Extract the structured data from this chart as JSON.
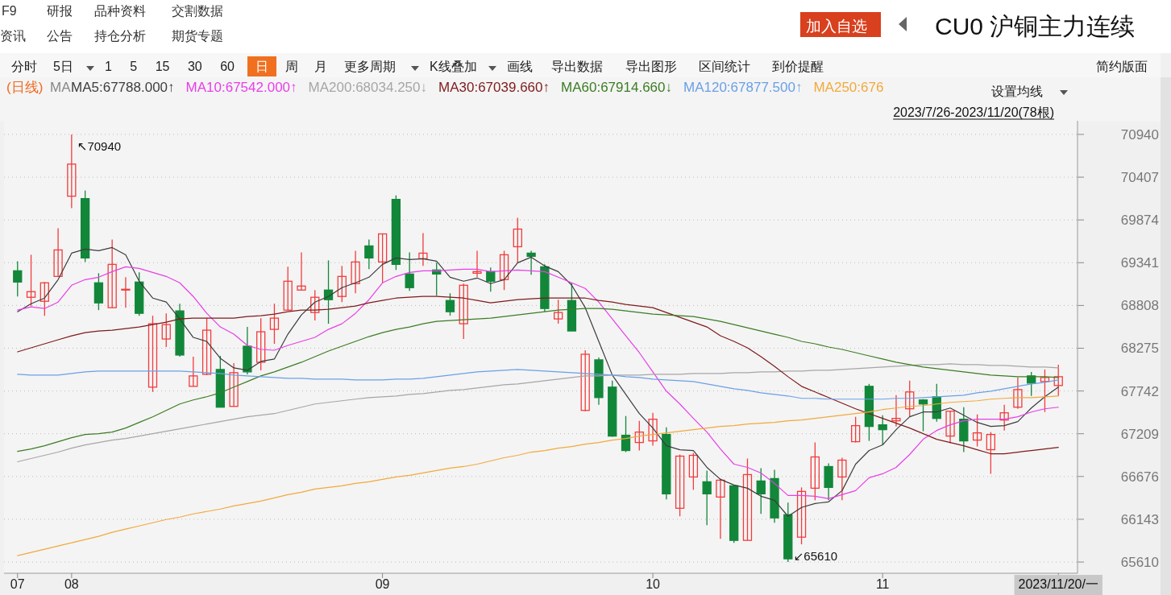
{
  "chart_data": {
    "type": "candlestick",
    "title": "CU0 沪铜主力连续",
    "subtitle": "2023/7/26-2023/11/20(78根)",
    "annotations": [
      "F9",
      "研报",
      "品种资料",
      "交割数据",
      "资讯",
      "公告",
      "持仓分析",
      "期货专题",
      "加入自选",
      "分时",
      "5日",
      "1 5 15 30 60",
      "日",
      "周",
      "月",
      "更多周期",
      "K线叠加",
      "画线",
      "导出数据",
      "导出图形",
      "区间统计",
      "到价提醒",
      "简约版面",
      "(日线)",
      "MA",
      "设置均线",
      {
        "text": "↖70940",
        "x": "08",
        "y": 70940
      },
      "↙65610"
    ],
    "categories": [
      "07",
      null,
      null,
      null,
      "08",
      null,
      null,
      null,
      null,
      null,
      null,
      null,
      null,
      null,
      null,
      null,
      null,
      null,
      null,
      null,
      null,
      null,
      null,
      null,
      null,
      null,
      null,
      "09",
      null,
      null,
      null,
      null,
      null,
      null,
      null,
      null,
      null,
      null,
      null,
      null,
      null,
      null,
      null,
      null,
      null,
      null,
      null,
      "10",
      null,
      null,
      null,
      null,
      null,
      null,
      null,
      null,
      null,
      null,
      null,
      null,
      null,
      null,
      null,
      null,
      "11",
      null,
      null,
      null,
      null,
      null,
      null,
      null,
      null,
      null,
      null,
      null,
      null,
      "2023/11/20/一"
    ],
    "ohlc": [
      [
        69240,
        69360,
        68920,
        69100
      ],
      [
        68910,
        69440,
        68800,
        68980
      ],
      [
        68860,
        69100,
        68680,
        69090
      ],
      [
        69170,
        69770,
        69170,
        69500
      ],
      [
        70170,
        70940,
        70020,
        70570
      ],
      [
        70140,
        70240,
        69350,
        69400
      ],
      [
        69090,
        69210,
        68750,
        68840
      ],
      [
        68780,
        69630,
        68780,
        69320
      ],
      [
        69010,
        69160,
        68780,
        69010
      ],
      [
        69100,
        69220,
        68680,
        68710
      ],
      [
        67790,
        68680,
        67730,
        68580
      ],
      [
        68390,
        68710,
        68290,
        68570
      ],
      [
        68740,
        68830,
        68170,
        68190
      ],
      [
        67800,
        68170,
        67800,
        67930
      ],
      [
        67950,
        68650,
        67940,
        68500
      ],
      [
        68010,
        68180,
        67540,
        67540
      ],
      [
        67550,
        68090,
        67550,
        67970
      ],
      [
        68300,
        68540,
        67950,
        67980
      ],
      [
        68100,
        68650,
        68000,
        68480
      ],
      [
        68510,
        68830,
        68330,
        68650
      ],
      [
        68750,
        69290,
        68750,
        69110
      ],
      [
        69000,
        69470,
        69000,
        69050
      ],
      [
        68720,
        69000,
        68620,
        68910
      ],
      [
        69000,
        69370,
        68580,
        68880
      ],
      [
        68920,
        69300,
        68850,
        69170
      ],
      [
        69080,
        69490,
        68960,
        69350
      ],
      [
        69550,
        69630,
        69260,
        69400
      ],
      [
        69350,
        69700,
        69090,
        69700
      ],
      [
        70130,
        70180,
        69250,
        69320
      ],
      [
        69200,
        69470,
        68990,
        69030
      ],
      [
        69390,
        69710,
        69300,
        69460
      ],
      [
        69250,
        69340,
        68930,
        69200
      ],
      [
        68870,
        68960,
        68680,
        68730
      ],
      [
        68580,
        69080,
        68390,
        69060
      ],
      [
        69210,
        69490,
        69160,
        69230
      ],
      [
        69230,
        69280,
        68980,
        69110
      ],
      [
        69130,
        69490,
        69000,
        69440
      ],
      [
        69540,
        69900,
        69340,
        69760
      ],
      [
        69460,
        69490,
        69190,
        69420
      ],
      [
        69290,
        69320,
        68730,
        68770
      ],
      [
        68640,
        68880,
        68580,
        68720
      ],
      [
        68870,
        69090,
        68490,
        68490
      ],
      [
        67500,
        68250,
        67490,
        68200
      ],
      [
        68130,
        68160,
        67570,
        67660
      ],
      [
        67790,
        67870,
        67170,
        67180
      ],
      [
        67190,
        67430,
        66980,
        67000
      ],
      [
        67100,
        67370,
        67000,
        67230
      ],
      [
        67120,
        67470,
        67060,
        67390
      ],
      [
        67200,
        67290,
        66390,
        66460
      ],
      [
        66280,
        66950,
        66180,
        66930
      ],
      [
        66670,
        66970,
        66510,
        66940
      ],
      [
        66610,
        66750,
        66070,
        66460
      ],
      [
        66420,
        66650,
        65900,
        66630
      ],
      [
        66560,
        66560,
        65850,
        65880
      ],
      [
        65880,
        66900,
        65880,
        66700
      ],
      [
        66620,
        66780,
        66210,
        66460
      ],
      [
        66650,
        66760,
        66100,
        66160
      ],
      [
        66200,
        66350,
        65610,
        65650
      ],
      [
        65920,
        66540,
        65830,
        66490
      ],
      [
        66530,
        67100,
        66380,
        66920
      ],
      [
        66800,
        66840,
        66380,
        66540
      ],
      [
        66670,
        66910,
        66380,
        66880
      ],
      [
        67110,
        67420,
        67100,
        67310
      ],
      [
        67800,
        67830,
        67120,
        67300
      ],
      [
        67320,
        67440,
        67070,
        67260
      ],
      [
        67370,
        67690,
        67300,
        67400
      ],
      [
        67520,
        67870,
        67420,
        67730
      ],
      [
        67630,
        67640,
        67240,
        67580
      ],
      [
        67670,
        67830,
        67360,
        67400
      ],
      [
        67180,
        67490,
        67090,
        67490
      ],
      [
        67390,
        67540,
        66980,
        67120
      ],
      [
        67130,
        67450,
        67050,
        67220
      ],
      [
        67010,
        67230,
        66710,
        67200
      ],
      [
        67380,
        67570,
        67250,
        67470
      ],
      [
        67540,
        67910,
        67520,
        67760
      ],
      [
        67930,
        67980,
        67680,
        67840
      ],
      [
        67860,
        68010,
        67480,
        67910
      ],
      [
        67810,
        68070,
        67680,
        67920
      ]
    ],
    "colors": [
      "#12873a",
      "#f23c3c",
      "#f23c3c",
      "#f23c3c",
      "#f23c3c",
      "#12873a",
      "#12873a",
      "#f23c3c",
      "#f23c3c",
      "#12873a",
      "#f23c3c",
      "#f23c3c",
      "#12873a",
      "#f23c3c",
      "#f23c3c",
      "#12873a",
      "#f23c3c",
      "#12873a",
      "#f23c3c",
      "#f23c3c",
      "#f23c3c",
      "#f23c3c",
      "#f23c3c",
      "#12873a",
      "#f23c3c",
      "#f23c3c",
      "#12873a",
      "#f23c3c",
      "#12873a",
      "#12873a",
      "#f23c3c",
      "#12873a",
      "#12873a",
      "#f23c3c",
      "#f23c3c",
      "#12873a",
      "#f23c3c",
      "#f23c3c",
      "#12873a",
      "#12873a",
      "#f23c3c",
      "#12873a",
      "#f23c3c",
      "#12873a",
      "#12873a",
      "#12873a",
      "#f23c3c",
      "#f23c3c",
      "#12873a",
      "#f23c3c",
      "#f23c3c",
      "#12873a",
      "#f23c3c",
      "#12873a",
      "#f23c3c",
      "#12873a",
      "#12873a",
      "#12873a",
      "#f23c3c",
      "#f23c3c",
      "#12873a",
      "#f23c3c",
      "#f23c3c",
      "#12873a",
      "#12873a",
      "#f23c3c",
      "#f23c3c",
      "#12873a",
      "#12873a",
      "#f23c3c",
      "#12873a",
      "#f23c3c",
      "#f23c3c",
      "#f23c3c",
      "#f23c3c",
      "#12873a",
      "#f23c3c",
      "#f23c3c"
    ],
    "series": [
      {
        "name": "MA5:67788.000↑",
        "type": "line",
        "color": "#3c3c3c",
        "values": [
          68730,
          68830,
          68900,
          69130,
          69460,
          69510,
          69490,
          69530,
          69440,
          69110,
          68900,
          68850,
          68640,
          68410,
          68360,
          68150,
          68030,
          68000,
          68110,
          68140,
          68450,
          68690,
          68850,
          68920,
          69030,
          69090,
          69160,
          69320,
          69400,
          69380,
          69390,
          69360,
          69160,
          69110,
          69150,
          69080,
          69130,
          69340,
          69410,
          69300,
          69230,
          69060,
          68780,
          68360,
          67940,
          67700,
          67460,
          67280,
          67060,
          67010,
          67000,
          66790,
          66640,
          66570,
          66530,
          66430,
          66380,
          66180,
          66290,
          66340,
          66360,
          66500,
          66830,
          67000,
          67070,
          67260,
          67420,
          67480,
          67480,
          67530,
          67440,
          67350,
          67300,
          67310,
          67360,
          67530,
          67670,
          67790
        ]
      },
      {
        "name": "MA10:67542.000↑",
        "type": "line",
        "color": "#e83ee8",
        "values": [
          68750,
          68790,
          68770,
          68850,
          69060,
          69130,
          69160,
          69230,
          69290,
          69270,
          69220,
          69170,
          69090,
          68920,
          68710,
          68540,
          68450,
          68310,
          68260,
          68250,
          68310,
          68360,
          68410,
          68510,
          68580,
          68710,
          68880,
          69090,
          69170,
          69220,
          69240,
          69240,
          69250,
          69260,
          69260,
          69230,
          69240,
          69250,
          69240,
          69230,
          69160,
          69090,
          69020,
          68850,
          68640,
          68430,
          68220,
          67980,
          67740,
          67580,
          67400,
          67230,
          67020,
          66830,
          66790,
          66720,
          66590,
          66440,
          66440,
          66430,
          66400,
          66450,
          66500,
          66660,
          66710,
          66790,
          66950,
          67140,
          67250,
          67320,
          67370,
          67390,
          67390,
          67390,
          67420,
          67480,
          67520,
          67540
        ]
      },
      {
        "name": "MA200:68034.250↓",
        "type": "line",
        "color": "#a6a6a6",
        "values": [
          66860,
          66900,
          66940,
          66980,
          67030,
          67070,
          67100,
          67130,
          67150,
          67180,
          67210,
          67240,
          67270,
          67300,
          67330,
          67360,
          67390,
          67420,
          67440,
          67460,
          67500,
          67540,
          67580,
          67600,
          67620,
          67640,
          67660,
          67670,
          67680,
          67700,
          67710,
          67730,
          67750,
          67760,
          67780,
          67800,
          67820,
          67830,
          67850,
          67870,
          67890,
          67910,
          67930,
          67930,
          67940,
          67940,
          67940,
          67950,
          67950,
          67950,
          67960,
          67960,
          67960,
          67970,
          67970,
          67980,
          67980,
          67990,
          67990,
          68000,
          68000,
          68010,
          68020,
          68030,
          68040,
          68050,
          68060,
          68070,
          68070,
          68080,
          68070,
          68070,
          68060,
          68060,
          68050,
          68040,
          68040,
          68030
        ]
      },
      {
        "name": "MA30:67039.660↑",
        "type": "line",
        "color": "#7f1a1a",
        "values": [
          68230,
          68280,
          68330,
          68380,
          68430,
          68470,
          68490,
          68500,
          68520,
          68540,
          68570,
          68600,
          68640,
          68650,
          68650,
          68650,
          68650,
          68670,
          68680,
          68700,
          68730,
          68750,
          68750,
          68760,
          68780,
          68800,
          68840,
          68870,
          68900,
          68910,
          68920,
          68920,
          68910,
          68900,
          68870,
          68840,
          68860,
          68880,
          68890,
          68900,
          68900,
          68900,
          68900,
          68870,
          68850,
          68820,
          68800,
          68780,
          68720,
          68660,
          68600,
          68540,
          68430,
          68360,
          68280,
          68170,
          68050,
          67920,
          67800,
          67730,
          67660,
          67590,
          67520,
          67460,
          67400,
          67340,
          67280,
          67210,
          67140,
          67100,
          67060,
          67010,
          66960,
          66960,
          66980,
          67000,
          67020,
          67040
        ]
      },
      {
        "name": "MA60:67914.660↓",
        "type": "line",
        "color": "#3b7d23",
        "values": [
          66990,
          67020,
          67060,
          67110,
          67160,
          67200,
          67210,
          67230,
          67280,
          67350,
          67420,
          67500,
          67580,
          67630,
          67670,
          67720,
          67790,
          67860,
          67930,
          67980,
          68040,
          68100,
          68170,
          68240,
          68300,
          68360,
          68420,
          68470,
          68510,
          68540,
          68580,
          68610,
          68620,
          68630,
          68640,
          68650,
          68670,
          68690,
          68710,
          68730,
          68750,
          68760,
          68770,
          68770,
          68760,
          68740,
          68720,
          68700,
          68690,
          68680,
          68670,
          68640,
          68610,
          68570,
          68530,
          68490,
          68450,
          68410,
          68360,
          68330,
          68290,
          68260,
          68220,
          68180,
          68140,
          68100,
          68070,
          68040,
          68020,
          68000,
          67980,
          67960,
          67940,
          67930,
          67920,
          67920,
          67920,
          67910
        ]
      },
      {
        "name": "MA120:67877.500↑",
        "type": "line",
        "color": "#6aa0e6",
        "values": [
          67950,
          67940,
          67940,
          67940,
          67960,
          67980,
          67990,
          67990,
          67990,
          67990,
          67990,
          67990,
          67990,
          67980,
          67970,
          67960,
          67940,
          67930,
          67920,
          67910,
          67900,
          67900,
          67890,
          67890,
          67890,
          67880,
          67880,
          67880,
          67890,
          67890,
          67900,
          67920,
          67940,
          67960,
          67980,
          67990,
          68000,
          68010,
          68000,
          67990,
          67980,
          67970,
          67960,
          67950,
          67940,
          67920,
          67910,
          67890,
          67880,
          67870,
          67860,
          67830,
          67800,
          67770,
          67750,
          67720,
          67700,
          67680,
          67650,
          67650,
          67640,
          67640,
          67640,
          67640,
          67640,
          67650,
          67650,
          67660,
          67670,
          67680,
          67690,
          67720,
          67740,
          67770,
          67800,
          67830,
          67850,
          67880
        ]
      },
      {
        "name": "MA250:676",
        "type": "line",
        "color": "#f2a93b",
        "values": [
          65690,
          65730,
          65770,
          65810,
          65850,
          65890,
          65930,
          65980,
          66020,
          66060,
          66100,
          66140,
          66170,
          66210,
          66240,
          66270,
          66310,
          66340,
          66370,
          66410,
          66450,
          66480,
          66520,
          66540,
          66560,
          66590,
          66610,
          66640,
          66670,
          66690,
          66720,
          66750,
          66780,
          66800,
          66830,
          66870,
          66910,
          66940,
          66980,
          67000,
          67030,
          67050,
          67080,
          67100,
          67130,
          67150,
          67180,
          67200,
          67220,
          67240,
          67260,
          67280,
          67300,
          67310,
          67330,
          67340,
          67350,
          67370,
          67380,
          67400,
          67420,
          67440,
          67460,
          67480,
          67510,
          67530,
          67550,
          67560,
          67580,
          67600,
          67610,
          67620,
          67640,
          67650,
          67660,
          67660,
          67670,
          67680
        ]
      }
    ],
    "ylim": [
      65470,
      71110
    ],
    "yticks": [
      65610,
      66143,
      66676,
      67209,
      67742,
      68275,
      68808,
      69341,
      69874,
      70407,
      70940
    ],
    "grid": "y",
    "legend": "top left"
  }
}
